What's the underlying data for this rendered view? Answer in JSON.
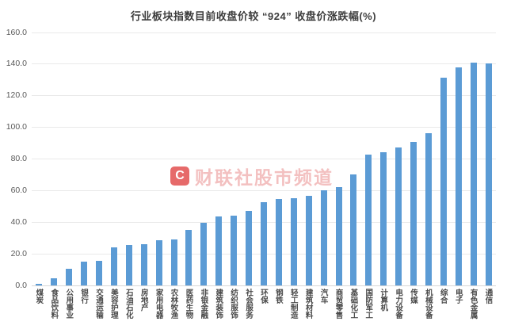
{
  "chart_data": {
    "type": "bar",
    "title": "行业板块指数目前收盘价较 “924” 收盘价涨跌幅(%)",
    "categories": [
      "煤炭",
      "食品饮料",
      "公用事业",
      "银行",
      "交通运输",
      "美容护理",
      "石油石化",
      "房地产",
      "家用电器",
      "农林牧渔",
      "医药生物",
      "非银金融",
      "建筑装饰",
      "纺织服饰",
      "社会服务",
      "环保",
      "钢铁",
      "轻工制造",
      "建筑材料",
      "汽车",
      "商贸零售",
      "基础化工",
      "国防军工",
      "计算机",
      "电力设备",
      "传媒",
      "机械设备",
      "综合",
      "电子",
      "有色金属",
      "通信"
    ],
    "values": [
      0.8,
      4.7,
      10.4,
      15.0,
      15.5,
      24.2,
      25.5,
      25.9,
      28.5,
      28.9,
      34.9,
      39.8,
      43.4,
      44.2,
      47.2,
      52.5,
      54.5,
      55.4,
      56.7,
      60.3,
      62.2,
      70.2,
      82.6,
      84.2,
      87.3,
      91.0,
      96.5,
      131.5,
      137.8,
      140.8,
      140.4
    ],
    "xlabel": "",
    "ylabel": "",
    "ylim": [
      0,
      160
    ],
    "ytick_step": 20,
    "ytick_decimals": 1,
    "grid": true,
    "legend": "none",
    "bar_color": "#5b9bd5",
    "grid_color": "#e9e9e9",
    "axis_line_color": "#d6d6d6",
    "title_color": "#3d3d3d",
    "tick_color": "#595959"
  },
  "watermark": {
    "logo_letter": "C",
    "text": "财联社股市频道",
    "logo_color": "#e04545",
    "text_color": "#e05c5c"
  }
}
